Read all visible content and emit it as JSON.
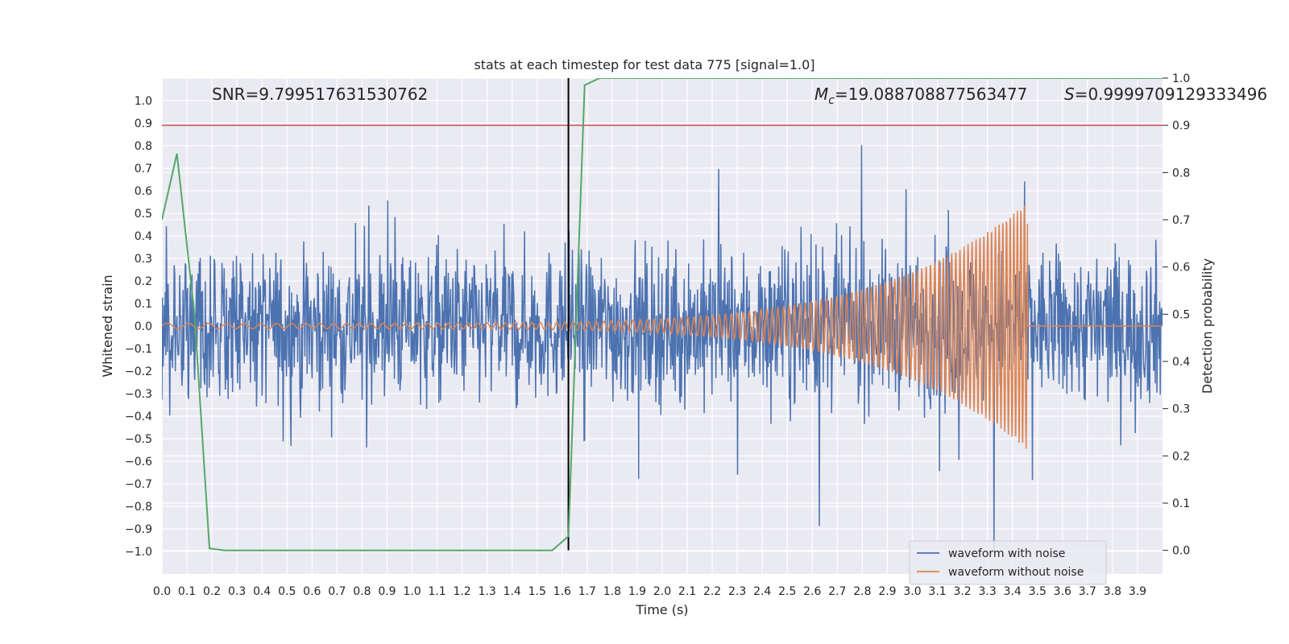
{
  "chart_data": {
    "type": "line",
    "title": "stats at each timestep for test data 775 [signal=1.0]",
    "xlabel": "Time (s)",
    "ylabel": "Whitened strain",
    "y2label": "Detection probability",
    "xlim": [
      0.0,
      4.0
    ],
    "ylim": [
      -1.1,
      1.1
    ],
    "y2lim": [
      -0.05,
      1.0
    ],
    "x_ticks": [
      0.0,
      0.1,
      0.2,
      0.3,
      0.4,
      0.5,
      0.6,
      0.7,
      0.8,
      0.9,
      1.0,
      1.1,
      1.2,
      1.3,
      1.4,
      1.5,
      1.6,
      1.7,
      1.8,
      1.9,
      2.0,
      2.1,
      2.2,
      2.3,
      2.4,
      2.5,
      2.6,
      2.7,
      2.8,
      2.9,
      3.0,
      3.1,
      3.2,
      3.3,
      3.4,
      3.5,
      3.6,
      3.7,
      3.8,
      3.9
    ],
    "x_tick_labels": [
      "0.0",
      "0.1",
      "0.2",
      "0.3",
      "0.4",
      "0.5",
      "0.6",
      "0.7",
      "0.8",
      "0.9",
      "1.0",
      "1.1",
      "1.2",
      "1.3",
      "1.4",
      "1.5",
      "1.6",
      "1.7",
      "1.8",
      "1.9",
      "2.0",
      "2.1",
      "2.2",
      "2.3",
      "2.4",
      "2.5",
      "2.6",
      "2.7",
      "2.8",
      "2.9",
      "3.0",
      "3.1",
      "3.2",
      "3.3",
      "3.4",
      "3.5",
      "3.6",
      "3.7",
      "3.8",
      "3.9"
    ],
    "y_ticks": [
      1.0,
      0.9,
      0.8,
      0.7,
      0.6,
      0.5,
      0.4,
      0.3,
      0.2,
      0.1,
      0.0,
      -0.1,
      -0.2,
      -0.3,
      -0.4,
      -0.5,
      -0.6,
      -0.7,
      -0.8,
      -0.9,
      -1.0
    ],
    "y_tick_labels": [
      "1.0",
      "0.9",
      "0.8",
      "0.7",
      "0.6",
      "0.5",
      "0.4",
      "0.3",
      "0.2",
      "0.1",
      "0.0",
      "−0.1",
      "−0.2",
      "−0.3",
      "−0.4",
      "−0.5",
      "−0.6",
      "−0.7",
      "−0.8",
      "−0.9",
      "−1.0"
    ],
    "y2_ticks": [
      1.0,
      0.9,
      0.8,
      0.7,
      0.6,
      0.5,
      0.4,
      0.3,
      0.2,
      0.1,
      0.0
    ],
    "y2_tick_labels": [
      "1.0",
      "0.9",
      "0.8",
      "0.7",
      "0.6",
      "0.5",
      "0.4",
      "0.3",
      "0.2",
      "0.1",
      "0.0"
    ],
    "annotations": {
      "snr": "SNR=9.799517631530762",
      "mc_symbol": "M",
      "mc_subscript": "c",
      "mc_value": "=19.088708877563477",
      "s_symbol": "S",
      "s_value": "=0.9999709129333496"
    },
    "threshold": {
      "axis": "y2",
      "value": 0.9,
      "color": "#c44e52"
    },
    "event_marker": {
      "x": 1.625,
      "color": "#000000"
    },
    "noise_series": {
      "name": "waveform with noise",
      "color": "#4c72b0",
      "x_range": [
        0.0,
        4.0
      ],
      "y_range": [
        -1.0,
        1.0
      ],
      "samples": 1800
    },
    "clean_series": {
      "name": "waveform without noise",
      "color": "#dd8452",
      "chirp_start_x": 0.0,
      "merger_x": 3.46,
      "start_amplitude": 0.012,
      "peak_amplitude": 0.55,
      "start_cycles_per_s": 11,
      "end_cycles_per_s": 75
    },
    "probability_series": {
      "name": "detection probability",
      "axis": "y2",
      "color": "#55a868",
      "x": [
        0.0,
        0.06,
        0.13,
        0.19,
        0.25,
        1.5,
        1.56,
        1.625,
        1.69,
        1.75,
        4.0
      ],
      "y": [
        0.7,
        0.84,
        0.5,
        0.004,
        0.0,
        0.0,
        0.0,
        0.03,
        0.985,
        1.0,
        1.0
      ]
    },
    "legend": {
      "position": "lower-right",
      "entries": [
        {
          "label": "waveform with noise",
          "color": "#4c72b0"
        },
        {
          "label": "waveform without noise",
          "color": "#dd8452"
        }
      ]
    }
  }
}
